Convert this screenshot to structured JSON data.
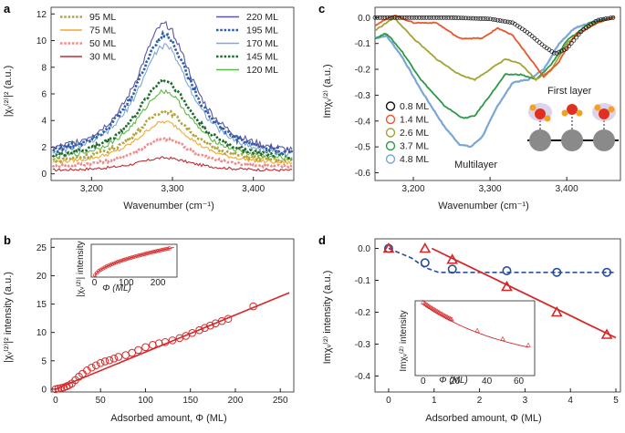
{
  "chart_data": [
    {
      "panel": "a",
      "type": "line",
      "xlabel": "Wavenumber (cm⁻¹)",
      "ylabel": "|χᵥ⁽²⁾|² (a.u.)",
      "xlim": [
        3150,
        3450
      ],
      "ylim": [
        -0.5,
        12.5
      ],
      "x_ticks": [
        "3,200",
        "3,300",
        "3,400"
      ],
      "y_ticks": [
        "0",
        "2",
        "4",
        "6",
        "8",
        "10",
        "12"
      ],
      "center": 3290,
      "series": [
        {
          "name": "220 ML",
          "peak": 11.2,
          "base": 1.1,
          "color": "#5a55a5",
          "style": "solid"
        },
        {
          "name": "195 ML",
          "peak": 10.4,
          "base": 1.0,
          "color": "#2c5ea8",
          "style": "dotted"
        },
        {
          "name": "170 ML",
          "peak": 9.6,
          "base": 0.9,
          "color": "#7fa7d8",
          "style": "solid"
        },
        {
          "name": "145 ML",
          "peak": 7.0,
          "base": 0.9,
          "color": "#1e6b2c",
          "style": "dotted"
        },
        {
          "name": "120 ML",
          "peak": 6.2,
          "base": 0.8,
          "color": "#5cb84a",
          "style": "solid"
        },
        {
          "name": "95 ML",
          "peak": 4.7,
          "base": 0.7,
          "color": "#b3a43c",
          "style": "dotted"
        },
        {
          "name": "75 ML",
          "peak": 3.9,
          "base": 0.6,
          "color": "#f0a830",
          "style": "solid"
        },
        {
          "name": "50 ML",
          "peak": 2.6,
          "base": 0.4,
          "color": "#f08a8a",
          "style": "dotted"
        },
        {
          "name": "30 ML",
          "peak": 1.2,
          "base": 0.2,
          "color": "#c32a32",
          "style": "solid"
        }
      ]
    },
    {
      "panel": "b",
      "type": "scatter",
      "xlabel": "Adsorbed amount, Φ (ML)",
      "ylabel": "|χᵥ⁽²⁾|² intensity (a.u.)",
      "xlim": [
        -5,
        265
      ],
      "ylim": [
        -0.5,
        26.5
      ],
      "x_ticks": [
        "0",
        "50",
        "100",
        "150",
        "200",
        "250"
      ],
      "y_ticks": [
        "0",
        "5",
        "10",
        "15",
        "20",
        "25"
      ],
      "x": [
        0,
        3,
        6,
        9,
        12,
        15,
        18,
        22,
        26,
        30,
        35,
        40,
        45,
        50,
        55,
        60,
        65,
        70,
        78,
        85,
        92,
        100,
        108,
        115,
        122,
        130,
        138,
        145,
        152,
        160,
        166,
        172,
        178,
        185,
        192,
        220
      ],
      "y": [
        0.0,
        0.1,
        0.2,
        0.3,
        0.5,
        0.7,
        1.0,
        1.6,
        2.2,
        2.7,
        3.3,
        3.8,
        4.2,
        4.6,
        4.9,
        5.1,
        5.4,
        5.7,
        6.0,
        6.4,
        6.9,
        7.4,
        7.8,
        8.1,
        8.3,
        8.6,
        9.0,
        9.4,
        9.9,
        10.4,
        10.8,
        11.2,
        11.6,
        12.0,
        12.4,
        14.6
      ],
      "fit_x": [
        0,
        260
      ],
      "fit_y": [
        0,
        17.0
      ],
      "color": "#d62728",
      "inset": {
        "ylabel": "|χᵥ⁽²⁾| intensity",
        "xlabel": "Φ (ML)",
        "x_ticks": [
          "0",
          "100",
          "200"
        ],
        "points": 40
      }
    },
    {
      "panel": "c",
      "type": "line",
      "xlabel": "Wavenumber (cm⁻¹)",
      "ylabel": "Imχᵥ⁽²⁾ (a.u.)",
      "xlim": [
        3150,
        3470
      ],
      "ylim": [
        -0.63,
        0.04
      ],
      "x_ticks": [
        "3,200",
        "3,300",
        "3,400"
      ],
      "y_ticks": [
        "0.0",
        "-0.1",
        "-0.2",
        "-0.3",
        "-0.4",
        "-0.5",
        "-0.6"
      ],
      "series": [
        {
          "name": "0.8 ML",
          "color": "#111111",
          "style": "circles",
          "x": [
            3150,
            3250,
            3300,
            3330,
            3350,
            3370,
            3385,
            3400,
            3420,
            3440,
            3460
          ],
          "y": [
            0,
            0,
            -0.005,
            -0.02,
            -0.06,
            -0.11,
            -0.14,
            -0.12,
            -0.05,
            -0.01,
            0
          ]
        },
        {
          "name": "1.4 ML",
          "color": "#e8572a",
          "style": "solid",
          "x": [
            3150,
            3175,
            3200,
            3230,
            3260,
            3290,
            3310,
            3330,
            3350,
            3370,
            3390,
            3410,
            3440,
            3460
          ],
          "y": [
            -0.03,
            0.01,
            -0.02,
            -0.02,
            -0.08,
            -0.08,
            -0.04,
            -0.07,
            -0.15,
            -0.23,
            -0.17,
            -0.07,
            -0.02,
            0
          ]
        },
        {
          "name": "2.6 ML",
          "color": "#a6a232",
          "style": "solid",
          "x": [
            3150,
            3175,
            3200,
            3230,
            3260,
            3280,
            3300,
            3320,
            3340,
            3360,
            3380,
            3400,
            3430,
            3460
          ],
          "y": [
            -0.05,
            0,
            -0.08,
            -0.16,
            -0.22,
            -0.24,
            -0.2,
            -0.16,
            -0.18,
            -0.24,
            -0.2,
            -0.1,
            -0.03,
            0
          ]
        },
        {
          "name": "3.7 ML",
          "color": "#2a9a48",
          "style": "solid",
          "x": [
            3150,
            3165,
            3185,
            3210,
            3240,
            3265,
            3280,
            3300,
            3320,
            3340,
            3360,
            3380,
            3400,
            3430,
            3460
          ],
          "y": [
            -0.08,
            -0.06,
            -0.13,
            -0.24,
            -0.34,
            -0.39,
            -0.38,
            -0.3,
            -0.22,
            -0.22,
            -0.24,
            -0.18,
            -0.09,
            -0.02,
            0
          ]
        },
        {
          "name": "4.8 ML",
          "color": "#7aa6d6",
          "style": "solid",
          "x": [
            3150,
            3165,
            3185,
            3210,
            3240,
            3260,
            3275,
            3290,
            3310,
            3330,
            3350,
            3370,
            3390,
            3410,
            3440,
            3460
          ],
          "y": [
            -0.08,
            -0.07,
            -0.15,
            -0.28,
            -0.42,
            -0.49,
            -0.5,
            -0.46,
            -0.34,
            -0.25,
            -0.24,
            -0.2,
            -0.1,
            -0.04,
            -0.01,
            0
          ]
        }
      ],
      "annotations": [
        "First layer",
        "Multilayer"
      ]
    },
    {
      "panel": "d",
      "type": "scatter",
      "xlabel": "Adsorbed amount, Φ (ML)",
      "ylabel": "Imχᵥ⁽²⁾ intensity (a.u.)",
      "xlim": [
        -0.3,
        5.1
      ],
      "ylim": [
        -0.45,
        0.03
      ],
      "x_ticks": [
        "0",
        "1",
        "2",
        "3",
        "4",
        "5"
      ],
      "y_ticks": [
        "0.0",
        "-0.1",
        "-0.2",
        "-0.3",
        "-0.4"
      ],
      "series": [
        {
          "name": "first layer",
          "marker": "circle",
          "color": "#2a4d9a",
          "x": [
            0,
            0.8,
            1.4,
            2.6,
            3.7,
            4.8
          ],
          "y": [
            0,
            -0.045,
            -0.065,
            -0.07,
            -0.075,
            -0.075
          ],
          "fit_x": [
            0,
            0.5,
            0.8,
            1.1,
            5
          ],
          "fit_y": [
            0,
            -0.03,
            -0.06,
            -0.075,
            -0.075
          ]
        },
        {
          "name": "multilayer",
          "marker": "triangle",
          "color": "#d62728",
          "x": [
            0,
            0.8,
            1.4,
            2.6,
            3.7,
            4.8
          ],
          "y": [
            0,
            0,
            -0.035,
            -0.12,
            -0.2,
            -0.27
          ],
          "fit_x": [
            0.95,
            5
          ],
          "fit_y": [
            0,
            -0.28
          ]
        }
      ],
      "inset": {
        "ylabel": "Imχᵥ⁽²⁾ intensity",
        "xlabel": "Φ (ML)",
        "x_ticks": [
          "0",
          "20",
          "40",
          "60"
        ],
        "points": 24
      }
    }
  ],
  "panels": {
    "a": {
      "label": "a"
    },
    "b": {
      "label": "b"
    },
    "c": {
      "label": "c"
    },
    "d": {
      "label": "d"
    }
  }
}
